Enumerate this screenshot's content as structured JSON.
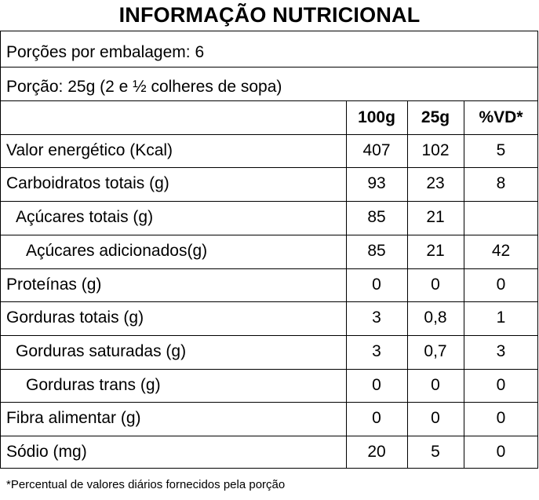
{
  "title": "INFORMAÇÃO NUTRICIONAL",
  "servings_per_package": "Porções por embalagem: 6",
  "serving_size": "Porção: 25g (2 e ½ colheres de sopa)",
  "columns": [
    "100g",
    "25g",
    "%VD*"
  ],
  "rows": [
    {
      "label": "Valor energético (Kcal)",
      "v100": "407",
      "v25": "102",
      "vd": "5"
    },
    {
      "label": "Carboidratos totais (g)",
      "v100": "93",
      "v25": "23",
      "vd": "8"
    },
    {
      "label": "Açúcares totais (g)",
      "v100": "85",
      "v25": "21",
      "vd": ""
    },
    {
      "label": "Açúcares adicionados(g)",
      "v100": "85",
      "v25": "21",
      "vd": "42"
    },
    {
      "label": "Proteínas (g)",
      "v100": "0",
      "v25": "0",
      "vd": "0"
    },
    {
      "label": "Gorduras totais (g)",
      "v100": "3",
      "v25": "0,8",
      "vd": "1"
    },
    {
      "label": "Gorduras saturadas (g)",
      "v100": "3",
      "v25": "0,7",
      "vd": "3"
    },
    {
      "label": "Gorduras trans (g)",
      "v100": "0",
      "v25": "0",
      "vd": "0"
    },
    {
      "label": "Fibra alimentar (g)",
      "v100": "0",
      "v25": "0",
      "vd": "0"
    },
    {
      "label": "Sódio (mg)",
      "v100": "20",
      "v25": "5",
      "vd": "0"
    }
  ],
  "footnote": "*Percentual de valores diários fornecidos pela porção"
}
